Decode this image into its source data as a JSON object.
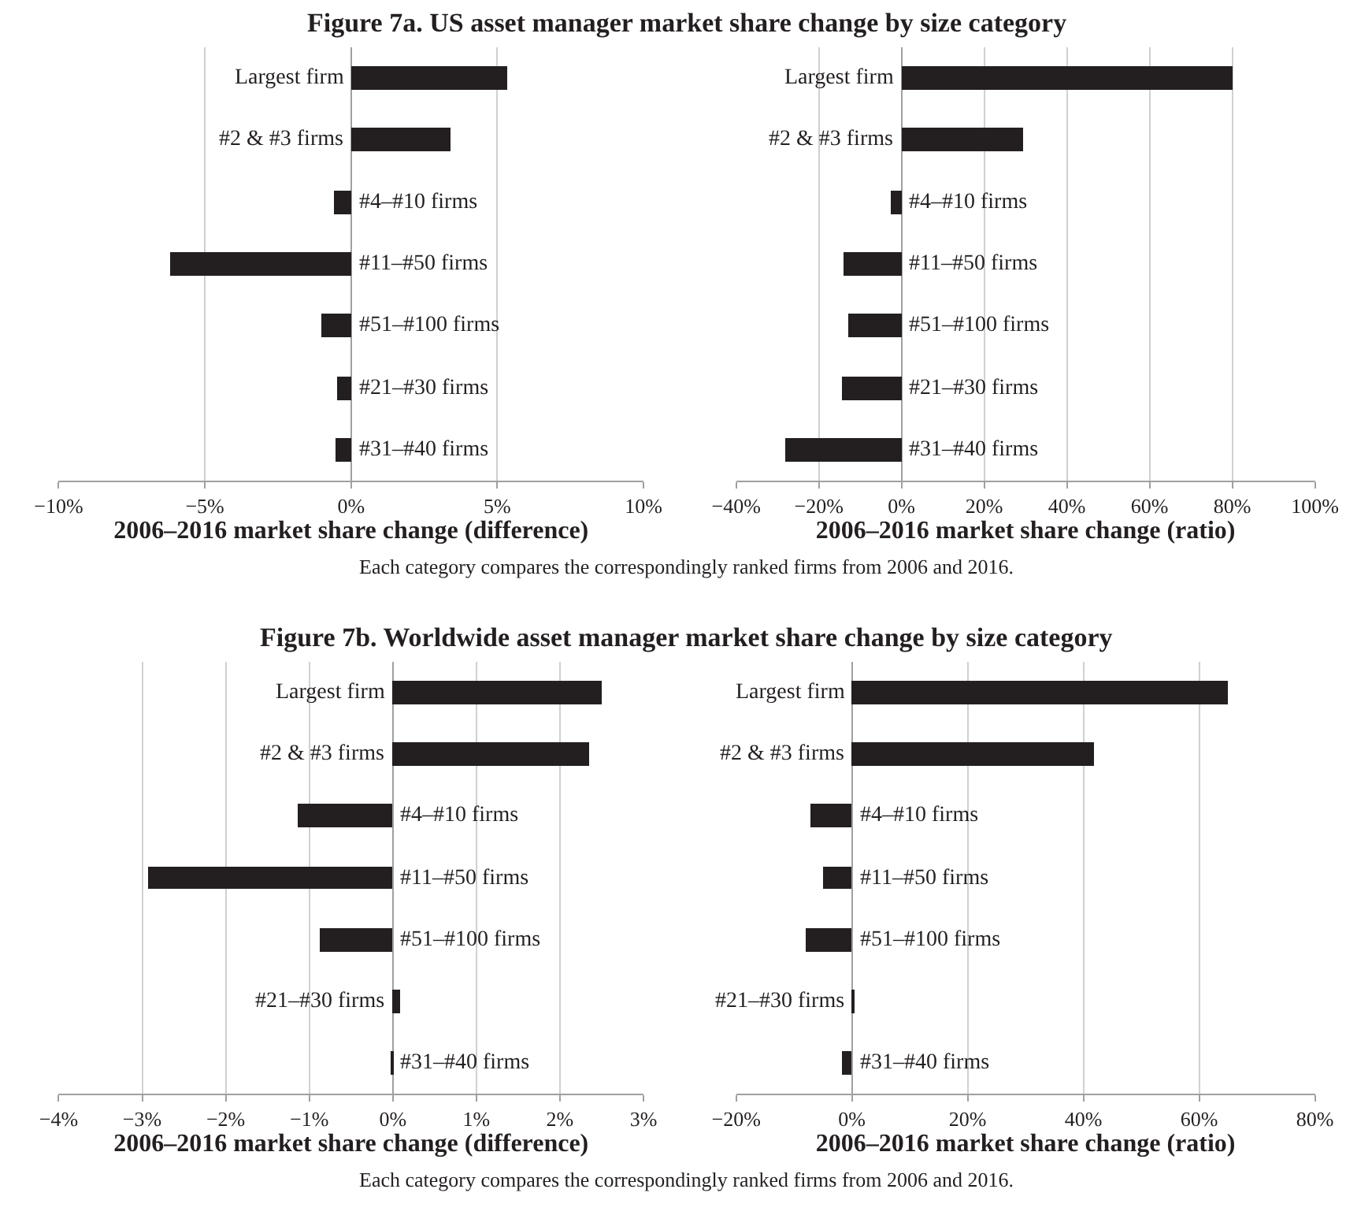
{
  "chart_data": [
    {
      "type": "bar",
      "orientation": "horizontal",
      "title": "Figure 7a. US asset manager market share change by size category",
      "annotations": [
        "Each category compares the correspondingly ranked firms from 2006 and 2016."
      ],
      "xlabel": "2006–2016 market share change (difference)",
      "categories": [
        "Largest firm",
        "#2 & #3 firms",
        "#4–#10 firms",
        "#11–#50 firms",
        "#51–#100 firms",
        "#21–#30 firms",
        "#31–#40 firms"
      ],
      "values": [
        5.35,
        3.4,
        -0.6,
        -6.2,
        -1.0,
        -0.45,
        -0.5
      ],
      "color": "#231f20",
      "xlim": [
        -10,
        10
      ],
      "xticks": [
        {
          "value": -10,
          "label": "−10%"
        },
        {
          "value": -5,
          "label": "−5%"
        },
        {
          "value": 0,
          "label": "0%"
        },
        {
          "value": 5,
          "label": "5%"
        },
        {
          "value": 10,
          "label": "10%"
        }
      ],
      "grid": "x"
    },
    {
      "type": "bar",
      "orientation": "horizontal",
      "xlabel": "2006–2016 market share change (ratio)",
      "categories": [
        "Largest firm",
        "#2 & #3 firms",
        "#4–#10 firms",
        "#11–#50 firms",
        "#51–#100 firms",
        "#21–#30 firms",
        "#31–#40 firms"
      ],
      "values": [
        80,
        29.5,
        -2.5,
        -14,
        -13,
        -14.5,
        -28
      ],
      "color": "#231f20",
      "xlim": [
        -40,
        100
      ],
      "xticks": [
        {
          "value": -40,
          "label": "−40%"
        },
        {
          "value": -20,
          "label": "−20%"
        },
        {
          "value": 0,
          "label": "0%"
        },
        {
          "value": 20,
          "label": "20%"
        },
        {
          "value": 40,
          "label": "40%"
        },
        {
          "value": 60,
          "label": "60%"
        },
        {
          "value": 80,
          "label": "80%"
        },
        {
          "value": 100,
          "label": "100%"
        }
      ],
      "grid": "x"
    },
    {
      "type": "bar",
      "orientation": "horizontal",
      "title": "Figure 7b. Worldwide asset manager market share change by size category",
      "annotations": [
        "Each category compares the correspondingly ranked firms from 2006 and 2016."
      ],
      "xlabel": "2006–2016 market share change (difference)",
      "categories": [
        "Largest firm",
        "#2 & #3 firms",
        "#4–#10 firms",
        "#11–#50 firms",
        "#51–#100 firms",
        "#21–#30 firms",
        "#31–#40 firms"
      ],
      "values": [
        2.5,
        2.35,
        -1.13,
        -2.93,
        -0.87,
        0.09,
        -0.03
      ],
      "color": "#231f20",
      "xlim": [
        -4,
        3
      ],
      "xticks": [
        {
          "value": -4,
          "label": "−4%"
        },
        {
          "value": -3,
          "label": "−3%"
        },
        {
          "value": -2,
          "label": "−2%"
        },
        {
          "value": -1,
          "label": "−1%"
        },
        {
          "value": 0,
          "label": "0%"
        },
        {
          "value": 1,
          "label": "1%"
        },
        {
          "value": 2,
          "label": "2%"
        },
        {
          "value": 3,
          "label": "3%"
        }
      ],
      "grid": "x"
    },
    {
      "type": "bar",
      "orientation": "horizontal",
      "xlabel": "2006–2016 market share change (ratio)",
      "categories": [
        "Largest firm",
        "#2 & #3 firms",
        "#4–#10 firms",
        "#11–#50 firms",
        "#51–#100 firms",
        "#21–#30 firms",
        "#31–#40 firms"
      ],
      "values": [
        65,
        41.7,
        -7.3,
        -5,
        -8,
        0.5,
        -1.7
      ],
      "color": "#231f20",
      "xlim": [
        -20,
        80
      ],
      "xticks": [
        {
          "value": -20,
          "label": "−20%"
        },
        {
          "value": 0,
          "label": "0%"
        },
        {
          "value": 20,
          "label": "20%"
        },
        {
          "value": 40,
          "label": "40%"
        },
        {
          "value": 60,
          "label": "60%"
        },
        {
          "value": 80,
          "label": "80%"
        }
      ],
      "grid": "x"
    }
  ]
}
